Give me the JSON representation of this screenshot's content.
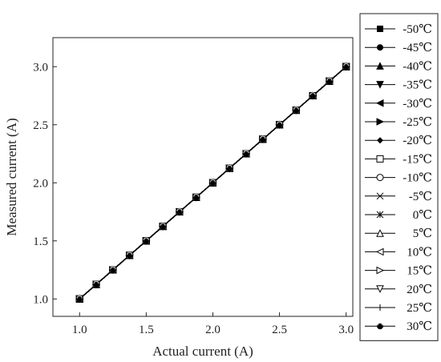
{
  "chart_data": {
    "type": "line",
    "title": "",
    "xlabel": "Actual current (A)",
    "ylabel": "Measured current (A)",
    "xlim": [
      0.8,
      3.05
    ],
    "ylim": [
      0.85,
      3.25
    ],
    "x_ticks": [
      "1.0",
      "1.5",
      "2.0",
      "2.5",
      "3.0"
    ],
    "y_ticks": [
      "1.0",
      "1.5",
      "2.0",
      "2.5",
      "3.0"
    ],
    "x": [
      1.0,
      1.125,
      1.25,
      1.375,
      1.5,
      1.625,
      1.75,
      1.875,
      2.0,
      2.125,
      2.25,
      2.375,
      2.5,
      2.625,
      2.75,
      2.875,
      3.0
    ],
    "series": [
      {
        "name": "-50℃",
        "marker": "square-filled",
        "values": [
          1.0,
          1.125,
          1.25,
          1.375,
          1.5,
          1.625,
          1.75,
          1.875,
          2.0,
          2.125,
          2.25,
          2.375,
          2.5,
          2.625,
          2.75,
          2.875,
          3.0
        ]
      },
      {
        "name": "-45℃",
        "marker": "circle-filled",
        "values": [
          1.0,
          1.125,
          1.25,
          1.375,
          1.5,
          1.625,
          1.75,
          1.875,
          2.0,
          2.125,
          2.25,
          2.375,
          2.5,
          2.625,
          2.75,
          2.875,
          3.0
        ]
      },
      {
        "name": "-40℃",
        "marker": "triangle-up-filled",
        "values": [
          1.0,
          1.125,
          1.25,
          1.375,
          1.5,
          1.625,
          1.75,
          1.875,
          2.0,
          2.125,
          2.25,
          2.375,
          2.5,
          2.625,
          2.75,
          2.875,
          3.0
        ]
      },
      {
        "name": "-35℃",
        "marker": "triangle-down-filled",
        "values": [
          1.0,
          1.125,
          1.25,
          1.375,
          1.5,
          1.625,
          1.75,
          1.875,
          2.0,
          2.125,
          2.25,
          2.375,
          2.5,
          2.625,
          2.75,
          2.875,
          3.0
        ]
      },
      {
        "name": "-30℃",
        "marker": "triangle-left-filled",
        "values": [
          1.0,
          1.125,
          1.25,
          1.375,
          1.5,
          1.625,
          1.75,
          1.875,
          2.0,
          2.125,
          2.25,
          2.375,
          2.5,
          2.625,
          2.75,
          2.875,
          3.0
        ]
      },
      {
        "name": "-25℃",
        "marker": "triangle-right-filled",
        "values": [
          1.0,
          1.125,
          1.25,
          1.375,
          1.5,
          1.625,
          1.75,
          1.875,
          2.0,
          2.125,
          2.25,
          2.375,
          2.5,
          2.625,
          2.75,
          2.875,
          3.0
        ]
      },
      {
        "name": "-20℃",
        "marker": "diamond-filled",
        "values": [
          1.0,
          1.125,
          1.25,
          1.375,
          1.5,
          1.625,
          1.75,
          1.875,
          2.0,
          2.125,
          2.25,
          2.375,
          2.5,
          2.625,
          2.75,
          2.875,
          3.0
        ]
      },
      {
        "name": "-15℃",
        "marker": "square-open",
        "values": [
          1.0,
          1.125,
          1.25,
          1.375,
          1.5,
          1.625,
          1.75,
          1.875,
          2.0,
          2.125,
          2.25,
          2.375,
          2.5,
          2.625,
          2.75,
          2.875,
          3.0
        ]
      },
      {
        "name": "-10℃",
        "marker": "circle-open",
        "values": [
          1.0,
          1.125,
          1.25,
          1.375,
          1.5,
          1.625,
          1.75,
          1.875,
          2.0,
          2.125,
          2.25,
          2.375,
          2.5,
          2.625,
          2.75,
          2.875,
          3.0
        ]
      },
      {
        "name": "-5℃",
        "marker": "x",
        "values": [
          1.0,
          1.125,
          1.25,
          1.375,
          1.5,
          1.625,
          1.75,
          1.875,
          2.0,
          2.125,
          2.25,
          2.375,
          2.5,
          2.625,
          2.75,
          2.875,
          3.0
        ]
      },
      {
        "name": "0℃",
        "marker": "asterisk",
        "values": [
          1.0,
          1.125,
          1.25,
          1.375,
          1.5,
          1.625,
          1.75,
          1.875,
          2.0,
          2.125,
          2.25,
          2.375,
          2.5,
          2.625,
          2.75,
          2.875,
          3.0
        ]
      },
      {
        "name": "5℃",
        "marker": "triangle-up-open",
        "values": [
          1.0,
          1.125,
          1.25,
          1.375,
          1.5,
          1.625,
          1.75,
          1.875,
          2.0,
          2.125,
          2.25,
          2.375,
          2.5,
          2.625,
          2.75,
          2.875,
          3.0
        ]
      },
      {
        "name": "10℃",
        "marker": "triangle-left-open",
        "values": [
          1.0,
          1.125,
          1.25,
          1.375,
          1.5,
          1.625,
          1.75,
          1.875,
          2.0,
          2.125,
          2.25,
          2.375,
          2.5,
          2.625,
          2.75,
          2.875,
          3.0
        ]
      },
      {
        "name": "15℃",
        "marker": "triangle-right-open",
        "values": [
          1.0,
          1.125,
          1.25,
          1.375,
          1.5,
          1.625,
          1.75,
          1.875,
          2.0,
          2.125,
          2.25,
          2.375,
          2.5,
          2.625,
          2.75,
          2.875,
          3.0
        ]
      },
      {
        "name": "20℃",
        "marker": "triangle-down-open",
        "values": [
          1.0,
          1.125,
          1.25,
          1.375,
          1.5,
          1.625,
          1.75,
          1.875,
          2.0,
          2.125,
          2.25,
          2.375,
          2.5,
          2.625,
          2.75,
          2.875,
          3.0
        ]
      },
      {
        "name": "25℃",
        "marker": "plus",
        "values": [
          1.0,
          1.125,
          1.25,
          1.375,
          1.5,
          1.625,
          1.75,
          1.875,
          2.0,
          2.125,
          2.25,
          2.375,
          2.5,
          2.625,
          2.75,
          2.875,
          3.0
        ]
      },
      {
        "name": "30℃",
        "marker": "circle-half",
        "values": [
          1.0,
          1.125,
          1.25,
          1.375,
          1.5,
          1.625,
          1.75,
          1.875,
          2.0,
          2.125,
          2.25,
          2.375,
          2.5,
          2.625,
          2.75,
          2.875,
          3.0
        ]
      }
    ],
    "grid": false,
    "legend_position": "right",
    "line_color": "#000000"
  }
}
